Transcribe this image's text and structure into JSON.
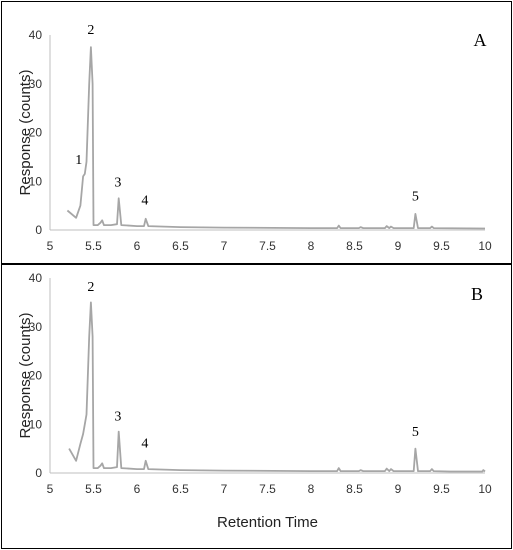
{
  "chart_data": [
    {
      "type": "line",
      "panel_label": "A",
      "ylabel": "Response (counts)",
      "xlabel": "",
      "xlim": [
        5,
        10
      ],
      "ylim": [
        0,
        40
      ],
      "x_ticks": [
        "5",
        "5.5",
        "6",
        "6.5",
        "7",
        "7.5",
        "8",
        "8.5",
        "9",
        "9.5",
        "10"
      ],
      "y_ticks": [
        "0",
        "10",
        "20",
        "30",
        "40"
      ],
      "series": [
        {
          "color": "#a6a6a6",
          "points": [
            [
              5.2,
              4.0
            ],
            [
              5.3,
              2.5
            ],
            [
              5.35,
              5.0
            ],
            [
              5.38,
              11.0
            ],
            [
              5.4,
              11.5
            ],
            [
              5.42,
              14.0
            ],
            [
              5.45,
              30.0
            ],
            [
              5.47,
              37.5
            ],
            [
              5.49,
              30.0
            ],
            [
              5.5,
              1.0
            ],
            [
              5.55,
              1.0
            ],
            [
              5.58,
              1.5
            ],
            [
              5.6,
              2.0
            ],
            [
              5.62,
              1.0
            ],
            [
              5.7,
              1.0
            ],
            [
              5.77,
              1.2
            ],
            [
              5.79,
              6.5
            ],
            [
              5.82,
              1.0
            ],
            [
              6.0,
              0.8
            ],
            [
              6.08,
              0.8
            ],
            [
              6.1,
              2.3
            ],
            [
              6.13,
              0.8
            ],
            [
              6.5,
              0.6
            ],
            [
              7.0,
              0.5
            ],
            [
              8.0,
              0.4
            ],
            [
              8.3,
              0.4
            ],
            [
              8.32,
              0.9
            ],
            [
              8.34,
              0.4
            ],
            [
              8.55,
              0.4
            ],
            [
              8.57,
              0.6
            ],
            [
              8.6,
              0.4
            ],
            [
              8.85,
              0.4
            ],
            [
              8.87,
              0.8
            ],
            [
              8.9,
              0.4
            ],
            [
              8.92,
              0.7
            ],
            [
              8.95,
              0.4
            ],
            [
              9.18,
              0.4
            ],
            [
              9.2,
              3.3
            ],
            [
              9.23,
              0.4
            ],
            [
              9.37,
              0.4
            ],
            [
              9.39,
              0.7
            ],
            [
              9.41,
              0.4
            ],
            [
              10.0,
              0.3
            ]
          ]
        }
      ],
      "annotations": [
        {
          "text": "1",
          "x": 5.33,
          "y": 13.5
        },
        {
          "text": "2",
          "x": 5.47,
          "y": 40.2
        },
        {
          "text": "3",
          "x": 5.78,
          "y": 8.9
        },
        {
          "text": "4",
          "x": 6.09,
          "y": 5.2
        },
        {
          "text": "5",
          "x": 9.2,
          "y": 6.1
        }
      ]
    },
    {
      "type": "line",
      "panel_label": "B",
      "ylabel": "Response (counts)",
      "xlabel": "Retention Time",
      "xlim": [
        5,
        10
      ],
      "ylim": [
        0,
        40
      ],
      "x_ticks": [
        "5",
        "5.5",
        "6",
        "6.5",
        "7",
        "7.5",
        "8",
        "8.5",
        "9",
        "9.5",
        "10"
      ],
      "y_ticks": [
        "0",
        "10",
        "20",
        "30",
        "40"
      ],
      "series": [
        {
          "color": "#a6a6a6",
          "points": [
            [
              5.22,
              5.0
            ],
            [
              5.3,
              2.5
            ],
            [
              5.35,
              6.0
            ],
            [
              5.38,
              8.0
            ],
            [
              5.4,
              10.0
            ],
            [
              5.42,
              12.0
            ],
            [
              5.45,
              28.0
            ],
            [
              5.47,
              35.0
            ],
            [
              5.49,
              28.0
            ],
            [
              5.5,
              1.0
            ],
            [
              5.55,
              1.0
            ],
            [
              5.58,
              1.5
            ],
            [
              5.6,
              2.0
            ],
            [
              5.62,
              1.0
            ],
            [
              5.7,
              1.0
            ],
            [
              5.77,
              1.2
            ],
            [
              5.79,
              8.5
            ],
            [
              5.82,
              1.0
            ],
            [
              6.0,
              0.8
            ],
            [
              6.08,
              0.8
            ],
            [
              6.1,
              2.5
            ],
            [
              6.13,
              0.8
            ],
            [
              6.5,
              0.6
            ],
            [
              7.0,
              0.5
            ],
            [
              8.0,
              0.4
            ],
            [
              8.3,
              0.4
            ],
            [
              8.32,
              1.0
            ],
            [
              8.34,
              0.4
            ],
            [
              8.55,
              0.4
            ],
            [
              8.57,
              0.6
            ],
            [
              8.6,
              0.4
            ],
            [
              8.85,
              0.4
            ],
            [
              8.87,
              0.9
            ],
            [
              8.9,
              0.4
            ],
            [
              8.92,
              0.8
            ],
            [
              8.95,
              0.4
            ],
            [
              9.18,
              0.4
            ],
            [
              9.2,
              5.0
            ],
            [
              9.23,
              0.4
            ],
            [
              9.37,
              0.4
            ],
            [
              9.39,
              0.8
            ],
            [
              9.41,
              0.4
            ],
            [
              9.6,
              0.3
            ],
            [
              9.97,
              0.3
            ],
            [
              9.98,
              0.6
            ],
            [
              10.0,
              0.3
            ]
          ]
        }
      ],
      "annotations": [
        {
          "text": "2",
          "x": 5.47,
          "y": 37.3
        },
        {
          "text": "3",
          "x": 5.78,
          "y": 10.8
        },
        {
          "text": "4",
          "x": 6.09,
          "y": 5.2
        },
        {
          "text": "5",
          "x": 9.2,
          "y": 7.6
        }
      ]
    }
  ]
}
